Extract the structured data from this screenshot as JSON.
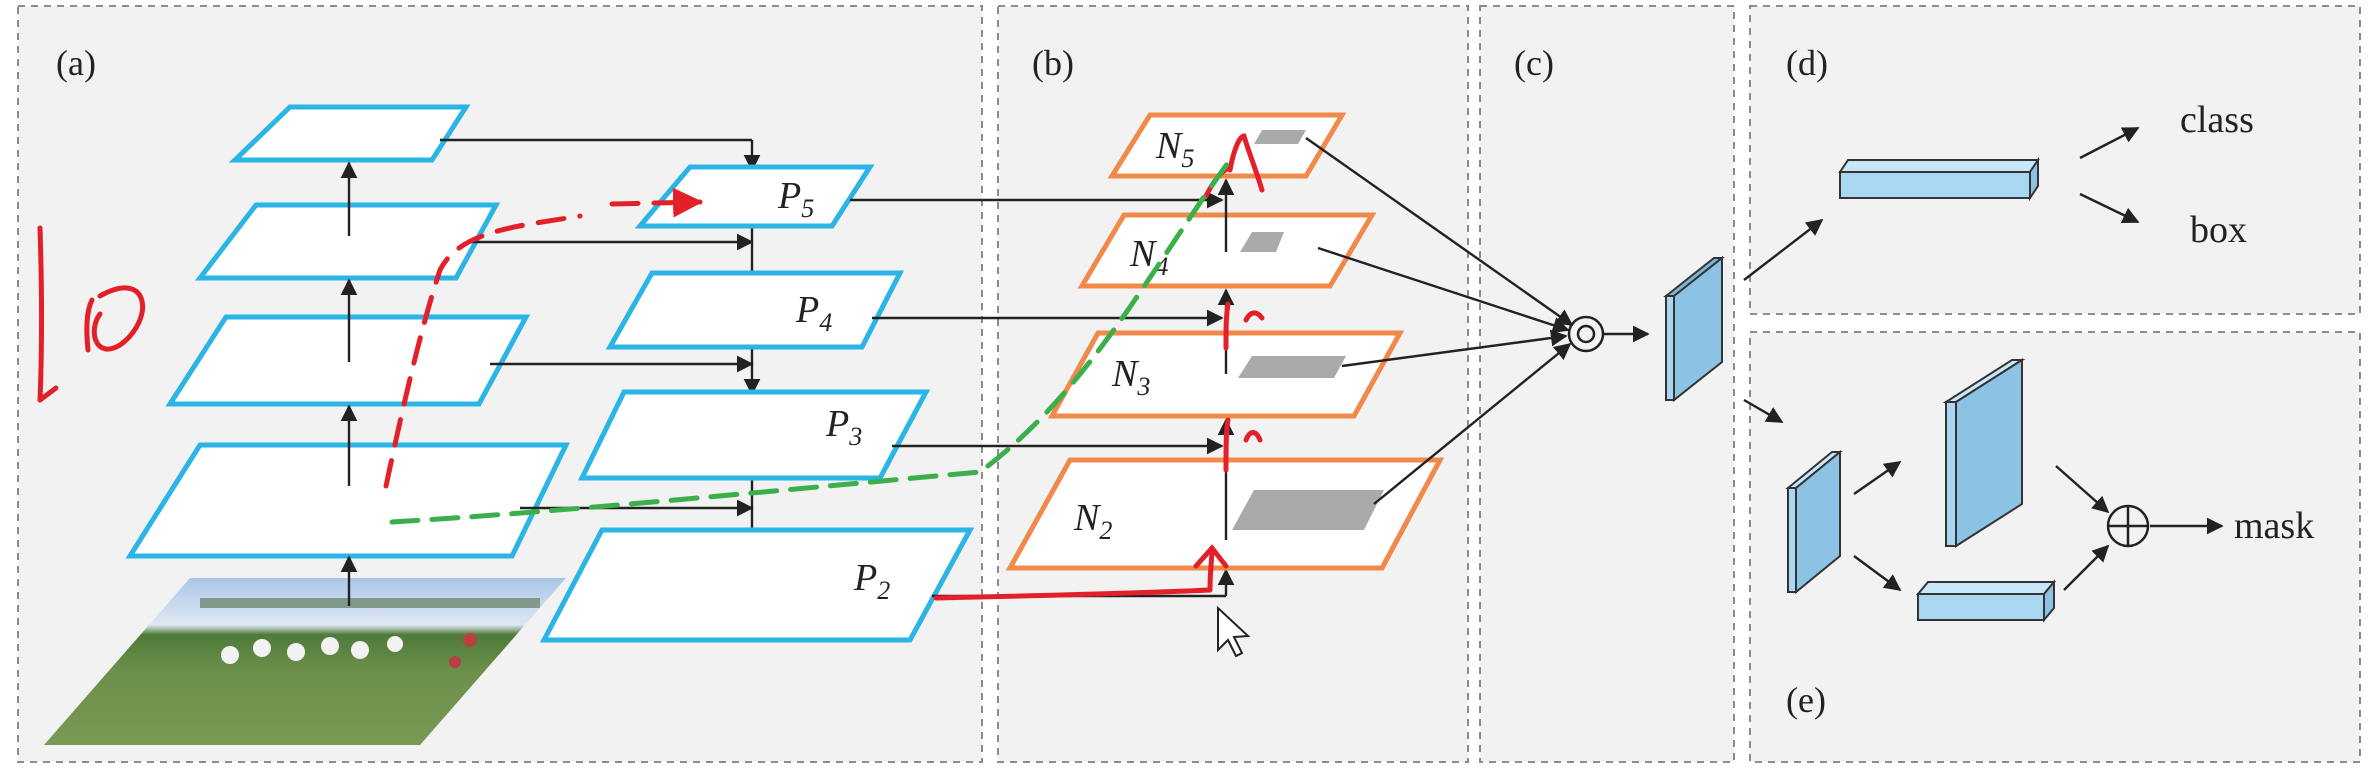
{
  "panels": {
    "a": {
      "label": "(a)"
    },
    "b": {
      "label": "(b)"
    },
    "c": {
      "label": "(c)"
    },
    "d": {
      "label": "(d)"
    },
    "e": {
      "label": "(e)"
    }
  },
  "fpn": {
    "levels": [
      {
        "base": "P",
        "sub": "5"
      },
      {
        "base": "P",
        "sub": "4"
      },
      {
        "base": "P",
        "sub": "3"
      },
      {
        "base": "P",
        "sub": "2"
      }
    ]
  },
  "pan": {
    "levels": [
      {
        "base": "N",
        "sub": "5"
      },
      {
        "base": "N",
        "sub": "4"
      },
      {
        "base": "N",
        "sub": "3"
      },
      {
        "base": "N",
        "sub": "2"
      }
    ]
  },
  "heads": {
    "class_label": "class",
    "box_label": "box",
    "mask_label": "mask"
  },
  "colors": {
    "backbone_stroke": "#2bb4e6",
    "pan_stroke": "#f0894a",
    "annotation_red": "#e3202a",
    "annotation_green": "#3bb04a",
    "feature_block": "#a9d7f2"
  }
}
